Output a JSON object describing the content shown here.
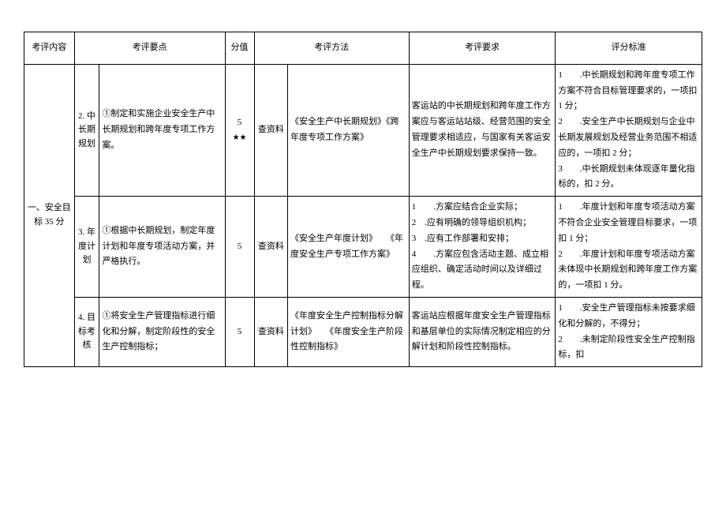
{
  "headers": {
    "content": "考评内容",
    "points": "考评要点",
    "score": "分值",
    "method": "考评方法",
    "requirement": "考评要求",
    "standard": "评分标准"
  },
  "category": "一、安全目标 35 分",
  "rows": [
    {
      "sub": "2. 中长期规划",
      "points": "①制定和实施企业安全生产中长期规划和跨年度专项工作方案。",
      "score": "5",
      "stars": "★★",
      "method": "查资料",
      "methoddesc": "《安全生产中长期规划》《跨年度专项工作方案》",
      "requirement": "客运站的中长期规划和跨年度工作方案应与客运站站级、经营范围的安全管理要求相适应，与国家有关客运安全生产中长期规划要求保持一致。",
      "standard": "1　　.中长期规划和跨年度专项工作方案不符合目标管理要求的，一项扣 1 分；\n2　　.安全生产中长期规划与企业中长期发展规划及经营业务范围不相适应的，一项扣 2 分；\n3　　.中长期规划未体现逐年量化指标的，扣 2 分。"
    },
    {
      "sub": "3. 年度计划",
      "points": "①根据中长期规划，制定年度计划和年度专项活动方案，并严格执行。",
      "score": "5",
      "stars": "",
      "method": "查资料",
      "methoddesc": "《安全生产年度计划》　　《年度安全生产专项工作方案》",
      "requirement": "1　　.方案应结合企业实际；\n2　.应有明确的领导组织机构；\n3　.应有工作部署和安排；\n4　　.方案应包含活动主题、成立相应组织、确定活动时间以及详细过程。",
      "standard": "1　　.年度计划和年度专项活动方案不符合企业安全管理目标要求，一项扣 1 分；\n2　　.年度计划和年度专项活动方案未体现中长期规划和跨年度工作方案的，一项扣 1 分。"
    },
    {
      "sub": "4. 目标考核",
      "points": "①将安全生产管理指标进行细化和分解，制定阶段性的安全生产控制指标；",
      "score": "5",
      "stars": "",
      "method": "查资料",
      "methoddesc": "《年度安全生产控制指标分解计划》　　《年度安全生产阶段性控制指标》",
      "requirement": "客运站应根据年度安全生产管理指标和基层单位的实际情况制定相应的分解计划和阶段性控制指标。",
      "standard": "1　　.安全生产管理指标未按要求细化和分解的，不得分；\n2　　.未制定阶段性安全生产控制指标，扣"
    }
  ],
  "style": {
    "background": "#ffffff",
    "border_color": "#000000",
    "fontsize": 11,
    "font": "SimSun"
  }
}
